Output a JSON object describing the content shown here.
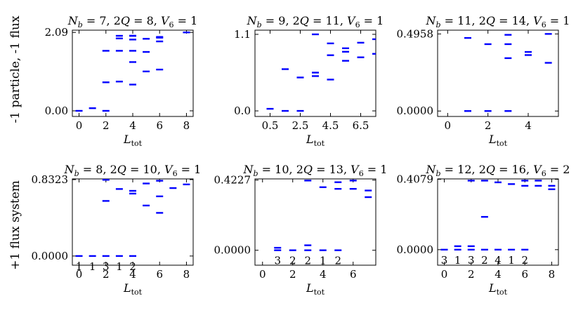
{
  "row_labels": [
    "-1 particle, -1 flux",
    "+1 flux system"
  ],
  "x_axis_label": {
    "main": "L",
    "sub": "tot"
  },
  "chart_data": [
    {
      "type": "scatter",
      "marker": "horizontal-dash",
      "marker_color": "#0000ff",
      "title": {
        "nb": "7",
        "twoq": "8",
        "v6": "1"
      },
      "xlim": [
        -0.5,
        8.5
      ],
      "ylim": [
        -0.15,
        2.15
      ],
      "xticks": [
        0,
        2,
        4,
        6,
        8
      ],
      "xtick_labels": [
        "0",
        "2",
        "4",
        "6",
        "8"
      ],
      "yticks": [
        0.0,
        2.09
      ],
      "ytick_labels": [
        "0.00",
        "2.09"
      ],
      "x": [
        0,
        1,
        2,
        2,
        2,
        3,
        3,
        3,
        3,
        4,
        4,
        4,
        4,
        4,
        4,
        5,
        5,
        5,
        6,
        6,
        6,
        6,
        8
      ],
      "y": [
        0.0,
        0.07,
        0.0,
        0.76,
        1.6,
        0.78,
        1.6,
        1.93,
        2.0,
        0.7,
        1.3,
        1.6,
        1.9,
        2.0,
        2.0,
        1.05,
        1.57,
        1.92,
        1.1,
        1.85,
        1.95,
        1.97,
        2.09
      ],
      "degeneracy_labels": []
    },
    {
      "type": "scatter",
      "marker": "horizontal-dash",
      "marker_color": "#0000ff",
      "title": {
        "nb": "9",
        "twoq": "11",
        "v6": "1"
      },
      "xlim": [
        -0.5,
        7.5
      ],
      "ylim": [
        -0.08,
        1.16
      ],
      "xticks": [
        0.5,
        2.5,
        4.5,
        6.5
      ],
      "xtick_labels": [
        "0.5",
        "2.5",
        "4.5",
        "6.5"
      ],
      "yticks": [
        0.0,
        1.1
      ],
      "ytick_labels": [
        "0.0",
        "1.1"
      ],
      "x": [
        0.5,
        1.5,
        1.5,
        2.5,
        2.5,
        3.5,
        3.5,
        3.5,
        4.5,
        4.5,
        4.5,
        5.5,
        5.5,
        5.5,
        6.5,
        6.5,
        7.5,
        7.5
      ],
      "y": [
        0.03,
        0.0,
        0.6,
        0.0,
        0.48,
        0.5,
        0.55,
        1.1,
        0.45,
        0.8,
        0.97,
        0.72,
        0.85,
        0.9,
        0.77,
        0.98,
        0.82,
        1.03
      ],
      "degeneracy_labels": []
    },
    {
      "type": "scatter",
      "marker": "horizontal-dash",
      "marker_color": "#0000ff",
      "title": {
        "nb": "11",
        "twoq": "14",
        "v6": "1"
      },
      "xlim": [
        -0.5,
        5.5
      ],
      "ylim": [
        -0.035,
        0.52
      ],
      "xticks": [
        0,
        2,
        4
      ],
      "xtick_labels": [
        "0",
        "2",
        "4"
      ],
      "yticks": [
        0.0,
        0.4958
      ],
      "ytick_labels": [
        "0.0000",
        "0.4958"
      ],
      "x": [
        1,
        1,
        2,
        2,
        3,
        3,
        3,
        3,
        4,
        4,
        5,
        5
      ],
      "y": [
        0.0,
        0.47,
        0.0,
        0.43,
        0.0,
        0.34,
        0.43,
        0.49,
        0.36,
        0.38,
        0.31,
        0.4958
      ],
      "degeneracy_labels": []
    },
    {
      "type": "scatter",
      "marker": "horizontal-dash",
      "marker_color": "#0000ff",
      "title": {
        "nb": "8",
        "twoq": "10",
        "v6": "1"
      },
      "xlim": [
        -0.5,
        8.5
      ],
      "ylim": [
        -0.1,
        0.84
      ],
      "xticks": [
        0,
        2,
        4,
        6,
        8
      ],
      "xtick_labels": [
        "0",
        "2",
        "4",
        "6",
        "8"
      ],
      "yticks": [
        0.0,
        0.8323
      ],
      "ytick_labels": [
        "0.0000",
        "0.8323"
      ],
      "x": [
        0,
        1,
        2,
        2,
        2,
        3,
        3,
        4,
        4,
        4,
        5,
        5,
        6,
        6,
        6,
        7,
        8
      ],
      "y": [
        0.0,
        0.0,
        0.0,
        0.6,
        0.83,
        0.0,
        0.73,
        0.0,
        0.68,
        0.71,
        0.55,
        0.79,
        0.47,
        0.65,
        0.82,
        0.74,
        0.78
      ],
      "degeneracy_labels": [
        {
          "x": 0,
          "text": "1"
        },
        {
          "x": 1,
          "text": "1"
        },
        {
          "x": 2,
          "text": "3"
        },
        {
          "x": 3,
          "text": "1"
        },
        {
          "x": 4,
          "text": "2"
        }
      ]
    },
    {
      "type": "scatter",
      "marker": "horizontal-dash",
      "marker_color": "#0000ff",
      "title": {
        "nb": "10",
        "twoq": "13",
        "v6": "1"
      },
      "xlim": [
        -0.5,
        7.5
      ],
      "ylim": [
        -0.09,
        0.43
      ],
      "xticks": [
        0,
        2,
        4,
        6
      ],
      "xtick_labels": [
        "0",
        "2",
        "4",
        "6"
      ],
      "yticks": [
        0.0,
        0.4227
      ],
      "ytick_labels": [
        "0.0000",
        "0.4227"
      ],
      "x": [
        1,
        1,
        2,
        3,
        3,
        3,
        4,
        4,
        5,
        5,
        5,
        6,
        6,
        7,
        7
      ],
      "y": [
        0.0,
        0.015,
        0.0,
        0.0,
        0.03,
        0.42,
        0.0,
        0.38,
        0.0,
        0.37,
        0.41,
        0.37,
        0.42,
        0.36,
        0.32
      ],
      "degeneracy_labels": [
        {
          "x": 1,
          "text": "3"
        },
        {
          "x": 2,
          "text": "2"
        },
        {
          "x": 3,
          "text": "2"
        },
        {
          "x": 4,
          "text": "1"
        },
        {
          "x": 5,
          "text": "2"
        }
      ]
    },
    {
      "type": "scatter",
      "marker": "horizontal-dash",
      "marker_color": "#0000ff",
      "title": {
        "nb": "12",
        "twoq": "16",
        "v6": "2"
      },
      "xlim": [
        -0.5,
        8.5
      ],
      "ylim": [
        -0.09,
        0.41
      ],
      "xticks": [
        0,
        2,
        4,
        6,
        8
      ],
      "xtick_labels": [
        "0",
        "2",
        "4",
        "6",
        "8"
      ],
      "yticks": [
        0.0,
        0.4079
      ],
      "ytick_labels": [
        "0.0000",
        "0.4079"
      ],
      "x": [
        0,
        1,
        1,
        2,
        2,
        2,
        3,
        3,
        3,
        4,
        4,
        5,
        5,
        6,
        6,
        6,
        7,
        7,
        8,
        8
      ],
      "y": [
        0.0,
        0.0,
        0.02,
        0.0,
        0.02,
        0.4,
        0.0,
        0.19,
        0.4,
        0.0,
        0.39,
        0.0,
        0.38,
        0.0,
        0.37,
        0.4,
        0.37,
        0.4,
        0.35,
        0.37
      ],
      "degeneracy_labels": [
        {
          "x": 0,
          "text": "3"
        },
        {
          "x": 1,
          "text": "1"
        },
        {
          "x": 2,
          "text": "3"
        },
        {
          "x": 3,
          "text": "2"
        },
        {
          "x": 4,
          "text": "4"
        },
        {
          "x": 5,
          "text": "1"
        },
        {
          "x": 6,
          "text": "2"
        }
      ]
    }
  ]
}
